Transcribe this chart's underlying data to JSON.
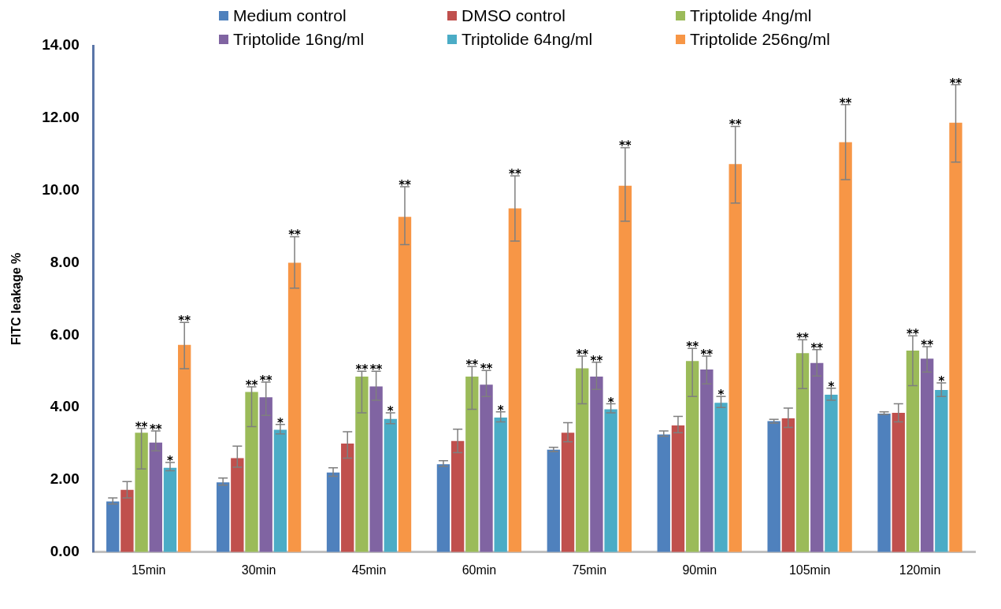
{
  "chart_data": {
    "type": "bar",
    "ylabel": "FITC leakage %",
    "legend": "top",
    "grid": false,
    "categories": [
      "15min",
      "30min",
      "45min",
      "60min",
      "75min",
      "90min",
      "105min",
      "120min"
    ],
    "ylim": [
      0,
      14
    ],
    "yticks": [
      {
        "value": 0,
        "label": "0.00"
      },
      {
        "value": 2,
        "label": "2.00"
      },
      {
        "value": 4,
        "label": "4.00"
      },
      {
        "value": 6,
        "label": "6.00"
      },
      {
        "value": 8,
        "label": "8.00"
      },
      {
        "value": 10,
        "label": "10.00"
      },
      {
        "value": 12,
        "label": "12.00"
      },
      {
        "value": 14,
        "label": "14.00"
      }
    ],
    "series": [
      {
        "name": "Medium control",
        "color": "#4f81bd",
        "values": [
          1.4,
          1.93,
          2.2,
          2.43,
          2.83,
          3.25,
          3.62,
          3.83
        ],
        "errors": [
          [
            1.33,
            1.5
          ],
          [
            1.85,
            2.05
          ],
          [
            2.1,
            2.33
          ],
          [
            2.37,
            2.53
          ],
          [
            2.78,
            2.9
          ],
          [
            3.2,
            3.35
          ],
          [
            3.57,
            3.67
          ],
          [
            3.8,
            3.88
          ]
        ]
      },
      {
        "name": "DMSO control",
        "color": "#c0504d",
        "values": [
          1.72,
          2.6,
          3.0,
          3.07,
          3.3,
          3.5,
          3.7,
          3.85
        ],
        "errors": [
          [
            1.5,
            1.95
          ],
          [
            2.35,
            2.93
          ],
          [
            2.6,
            3.33
          ],
          [
            2.75,
            3.4
          ],
          [
            3.05,
            3.58
          ],
          [
            3.3,
            3.75
          ],
          [
            3.45,
            3.98
          ],
          [
            3.6,
            4.1
          ]
        ]
      },
      {
        "name": "Triptolide 4ng/ml",
        "color": "#9bbb59",
        "values": [
          3.3,
          4.43,
          4.85,
          4.85,
          5.08,
          5.28,
          5.5,
          5.57
        ],
        "errors": [
          [
            2.3,
            3.42
          ],
          [
            3.47,
            4.57
          ],
          [
            3.85,
            5.0
          ],
          [
            3.95,
            5.13
          ],
          [
            4.1,
            5.42
          ],
          [
            4.3,
            5.63
          ],
          [
            4.52,
            5.87
          ],
          [
            4.6,
            5.98
          ]
        ],
        "value_labels": [
          "**",
          "**",
          "**",
          "**",
          "**",
          "**",
          "**",
          "**"
        ]
      },
      {
        "name": "Triptolide 16ng/ml",
        "color": "#8064a2",
        "values": [
          3.03,
          4.28,
          4.58,
          4.63,
          4.85,
          5.05,
          5.23,
          5.35
        ],
        "errors": [
          [
            2.8,
            3.35
          ],
          [
            3.78,
            4.7
          ],
          [
            4.2,
            5.0
          ],
          [
            4.3,
            5.02
          ],
          [
            4.5,
            5.25
          ],
          [
            4.65,
            5.42
          ],
          [
            4.87,
            5.6
          ],
          [
            4.98,
            5.68
          ]
        ],
        "value_labels": [
          "**",
          "**",
          "**",
          "**",
          "**",
          "**",
          "**",
          "**"
        ]
      },
      {
        "name": "Triptolide 64ng/ml",
        "color": "#4bacc6",
        "values": [
          2.33,
          3.38,
          3.68,
          3.72,
          3.95,
          4.13,
          4.35,
          4.48
        ],
        "errors": [
          [
            2.25,
            2.48
          ],
          [
            3.27,
            3.53
          ],
          [
            3.55,
            3.85
          ],
          [
            3.6,
            3.88
          ],
          [
            3.85,
            4.1
          ],
          [
            4.0,
            4.3
          ],
          [
            4.2,
            4.53
          ],
          [
            4.3,
            4.68
          ]
        ],
        "value_labels": [
          "*",
          "*",
          "*",
          "*",
          "*",
          "*",
          "*",
          "*"
        ]
      },
      {
        "name": "Triptolide 256ng/ml",
        "color": "#f79646",
        "values": [
          5.73,
          8.0,
          9.27,
          9.5,
          10.13,
          10.73,
          11.33,
          11.87
        ],
        "errors": [
          [
            5.07,
            6.35
          ],
          [
            7.3,
            8.72
          ],
          [
            8.5,
            10.1
          ],
          [
            8.6,
            10.4
          ],
          [
            9.15,
            11.18
          ],
          [
            9.65,
            11.77
          ],
          [
            10.3,
            12.37
          ],
          [
            10.78,
            12.92
          ]
        ],
        "value_labels": [
          "**",
          "**",
          "**",
          "**",
          "**",
          "**",
          "**",
          "**"
        ]
      }
    ]
  }
}
